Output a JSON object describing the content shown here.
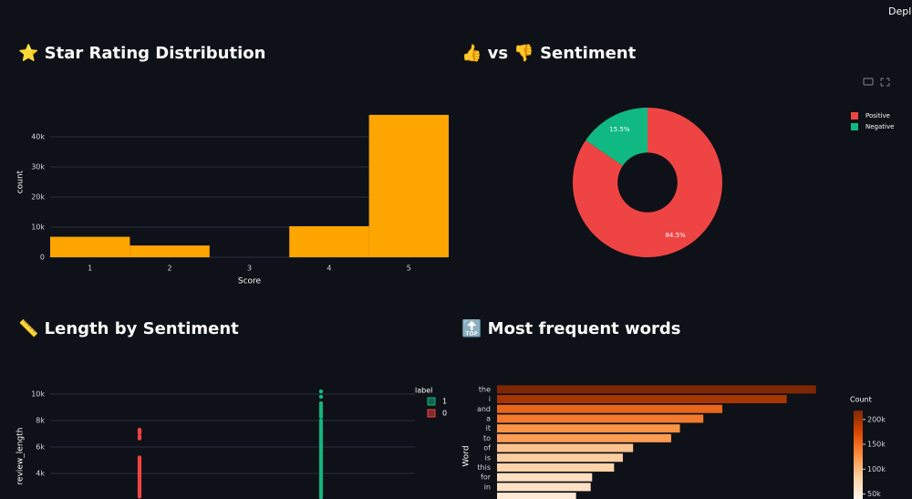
{
  "header": {
    "deploy": "Deploy"
  },
  "chart_data": [
    {
      "type": "bar",
      "title": "⭐ Star Rating Distribution",
      "categories": [
        "1",
        "2",
        "3",
        "4",
        "5"
      ],
      "values": [
        6800,
        3900,
        0,
        10300,
        47300
      ],
      "color": "#ffa500",
      "xlabel": "Score",
      "ylabel": "count",
      "grid": true,
      "ylim": [
        0,
        50000
      ],
      "yticks": [
        0,
        {
          "value": 10000,
          "label": "10k"
        },
        {
          "value": 20000,
          "label": "20k"
        },
        {
          "value": 30000,
          "label": "30k"
        },
        {
          "value": 40000,
          "label": "40k"
        }
      ]
    },
    {
      "type": "pie",
      "title": "👍 vs 👎 Sentiment",
      "categories": [
        "Positive",
        "Negative"
      ],
      "values": [
        84.5,
        15.5
      ],
      "value_labels": [
        "84.5%",
        "15.5%"
      ],
      "colors": [
        "#ef4444",
        "#10b981"
      ],
      "hole": 0.4,
      "legend": "top-right"
    },
    {
      "type": "strip",
      "title": "📏 Length by Sentiment",
      "ylabel": "review_length",
      "legend_title": "label",
      "grid": true,
      "ylim": [
        2100,
        10600
      ],
      "yticks": [
        {
          "value": 4000,
          "label": "4k"
        },
        {
          "value": 6000,
          "label": "6k"
        },
        {
          "value": 8000,
          "label": "8k"
        },
        {
          "value": 10000,
          "label": "10k"
        }
      ],
      "series": [
        {
          "name": "1",
          "color": "#10b981",
          "values": [
            10200,
            9800,
            9300,
            9100,
            8900,
            8700,
            8500,
            8300,
            8000,
            7800,
            7600,
            7400,
            7200,
            7000,
            6800,
            6600,
            6400,
            6200,
            6000,
            5800,
            5600,
            5400,
            5200,
            5000,
            4800,
            4600,
            4400,
            4200,
            4000,
            3800,
            3600,
            3400,
            3200,
            3000,
            2800,
            2600,
            2400,
            2200
          ]
        },
        {
          "name": "0",
          "color": "#ef4444",
          "values": [
            7300,
            7200,
            7050,
            6800,
            6650,
            5200,
            5100,
            4950,
            4800,
            4650,
            4500,
            4350,
            4200,
            4050,
            3900,
            3750,
            3600,
            3450,
            3300,
            3150,
            3000,
            2850,
            2700,
            2550,
            2400,
            2250
          ]
        }
      ]
    },
    {
      "type": "hbar",
      "title": "🔝 Most frequent words",
      "ylabel": "Word",
      "categories": [
        "the",
        "i",
        "and",
        "a",
        "it",
        "to",
        "of",
        "is",
        "this",
        "for",
        "in",
        null
      ],
      "values": [
        218000,
        198000,
        154000,
        141000,
        125000,
        119000,
        93000,
        86000,
        80000,
        65000,
        64000,
        54000
      ],
      "xlim": [
        0,
        230000
      ],
      "colorbar_title": "Count",
      "clim": [
        40000,
        218000
      ],
      "colorscale": [
        "#fff5eb",
        "#fdd0a2",
        "#fd8d3c",
        "#d94801",
        "#7f2704"
      ],
      "colorbar_ticks": [
        {
          "value": 50000,
          "label": "50k"
        },
        {
          "value": 100000,
          "label": "100k"
        },
        {
          "value": 150000,
          "label": "150k"
        },
        {
          "value": 200000,
          "label": "200k"
        }
      ]
    }
  ]
}
